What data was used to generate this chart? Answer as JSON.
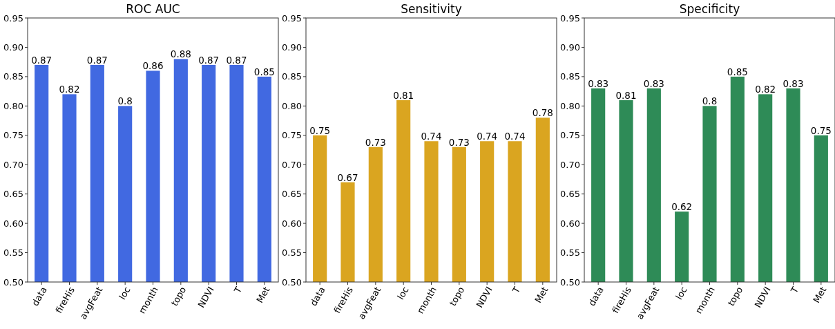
{
  "chart_data": [
    {
      "type": "bar",
      "title": "ROC AUC",
      "categories": [
        "data",
        "fireHis",
        "avgFeat",
        "loc",
        "month",
        "topo",
        "NDVI",
        "T",
        "Met"
      ],
      "values": [
        0.87,
        0.82,
        0.87,
        0.8,
        0.86,
        0.88,
        0.87,
        0.87,
        0.85
      ],
      "color": "#4169e1",
      "ylim": [
        0.5,
        0.95
      ],
      "yticks": [
        {
          "value": 0.5,
          "label": "0.50"
        },
        {
          "value": 0.55,
          "label": "0.55"
        },
        {
          "value": 0.6,
          "label": "0.60"
        },
        {
          "value": 0.65,
          "label": "0.65"
        },
        {
          "value": 0.7,
          "label": "0.70"
        },
        {
          "value": 0.75,
          "label": "0.75"
        },
        {
          "value": 0.8,
          "label": "0.80"
        },
        {
          "value": 0.85,
          "label": "0.85"
        },
        {
          "value": 0.9,
          "label": "0.90"
        },
        {
          "value": 0.95,
          "label": "0.95"
        }
      ],
      "data_labels": true
    },
    {
      "type": "bar",
      "title": "Sensitivity",
      "categories": [
        "data",
        "fireHis",
        "avgFeat",
        "loc",
        "month",
        "topo",
        "NDVI",
        "T",
        "Met"
      ],
      "values": [
        0.75,
        0.67,
        0.73,
        0.81,
        0.74,
        0.73,
        0.74,
        0.74,
        0.78
      ],
      "color": "#daa520",
      "ylim": [
        0.5,
        0.95
      ],
      "yticks": [
        {
          "value": 0.5,
          "label": "0.50"
        },
        {
          "value": 0.55,
          "label": "0.55"
        },
        {
          "value": 0.6,
          "label": "0.60"
        },
        {
          "value": 0.65,
          "label": "0.65"
        },
        {
          "value": 0.7,
          "label": "0.70"
        },
        {
          "value": 0.75,
          "label": "0.75"
        },
        {
          "value": 0.8,
          "label": "0.80"
        },
        {
          "value": 0.85,
          "label": "0.85"
        },
        {
          "value": 0.9,
          "label": "0.90"
        },
        {
          "value": 0.95,
          "label": "0.95"
        }
      ],
      "data_labels": true
    },
    {
      "type": "bar",
      "title": "Specificity",
      "categories": [
        "data",
        "fireHis",
        "avgFeat",
        "loc",
        "month",
        "topo",
        "NDVI",
        "T",
        "Met"
      ],
      "values": [
        0.83,
        0.81,
        0.83,
        0.62,
        0.8,
        0.85,
        0.82,
        0.83,
        0.75
      ],
      "color": "#2e8b57",
      "ylim": [
        0.5,
        0.95
      ],
      "yticks": [
        {
          "value": 0.5,
          "label": "0.50"
        },
        {
          "value": 0.55,
          "label": "0.55"
        },
        {
          "value": 0.6,
          "label": "0.60"
        },
        {
          "value": 0.65,
          "label": "0.65"
        },
        {
          "value": 0.7,
          "label": "0.70"
        },
        {
          "value": 0.75,
          "label": "0.75"
        },
        {
          "value": 0.8,
          "label": "0.80"
        },
        {
          "value": 0.85,
          "label": "0.85"
        },
        {
          "value": 0.9,
          "label": "0.90"
        },
        {
          "value": 0.95,
          "label": "0.95"
        }
      ],
      "data_labels": true
    }
  ]
}
